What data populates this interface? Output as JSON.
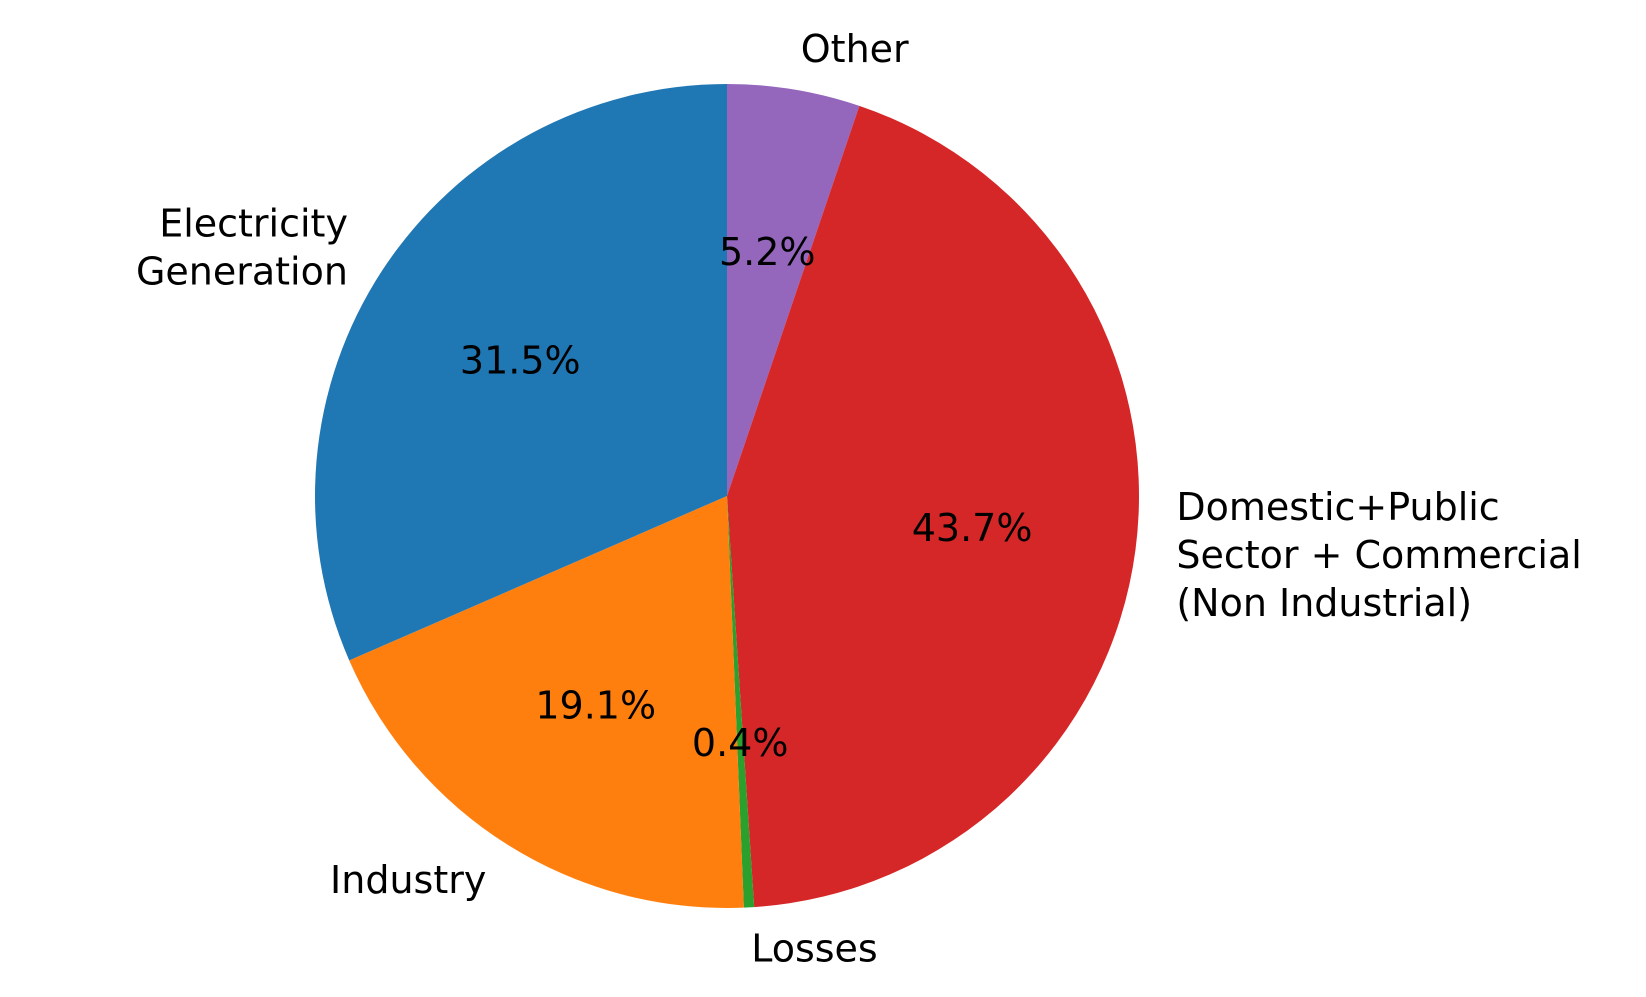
{
  "chart_data": {
    "type": "pie",
    "title": "",
    "start_angle_deg": 90,
    "direction": "clockwise",
    "slices": [
      {
        "label": "Other",
        "label_lines": [
          "Other"
        ],
        "value": 5.2,
        "pct_label": "5.2%",
        "color": "#9467bd"
      },
      {
        "label": "Domestic+Public Sector + Commercial (Non Industrial)",
        "label_lines": [
          "Domestic+Public",
          "Sector + Commercial",
          "(Non Industrial)"
        ],
        "value": 43.7,
        "pct_label": "43.7%",
        "color": "#d62728"
      },
      {
        "label": "Losses",
        "label_lines": [
          "Losses"
        ],
        "value": 0.4,
        "pct_label": "0.4%",
        "color": "#2ca02c"
      },
      {
        "label": "Industry",
        "label_lines": [
          "Industry"
        ],
        "value": 19.1,
        "pct_label": "19.1%",
        "color": "#ff7f0e"
      },
      {
        "label": "Electricity Generation",
        "label_lines": [
          "Electricity",
          "Generation"
        ],
        "value": 31.5,
        "pct_label": "31.5%",
        "color": "#1f77b4"
      }
    ]
  }
}
